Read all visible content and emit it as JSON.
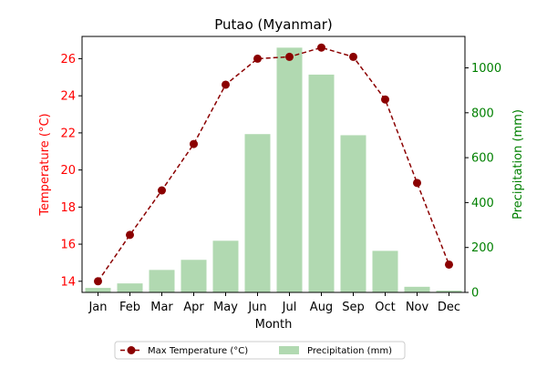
{
  "chart_data": {
    "type": "bar",
    "title": "Putao (Myanmar)",
    "xlabel": "Month",
    "categories": [
      "Jan",
      "Feb",
      "Mar",
      "Apr",
      "May",
      "Jun",
      "Jul",
      "Aug",
      "Sep",
      "Oct",
      "Nov",
      "Dec"
    ],
    "y_left": {
      "label": "Temperature (°C)",
      "range": [
        13.4,
        27.2
      ],
      "ticks": [
        14,
        16,
        18,
        20,
        22,
        24,
        26
      ],
      "color": "#ff0000"
    },
    "y_right": {
      "label": "Precipitation (mm)",
      "range": [
        0,
        1140
      ],
      "ticks": [
        0,
        200,
        400,
        600,
        800,
        1000
      ],
      "color": "#008000"
    },
    "series": [
      {
        "name": "Max Temperature (°C)",
        "type": "line",
        "axis": "left",
        "color": "#8b0000",
        "line_style": "dashed",
        "marker": "circle",
        "values": [
          14.0,
          16.5,
          18.9,
          21.4,
          24.6,
          26.0,
          26.1,
          26.6,
          26.1,
          23.8,
          19.3,
          14.9
        ]
      },
      {
        "name": "Precipitation (mm)",
        "type": "bar",
        "axis": "right",
        "color": "#b1d9b1",
        "values": [
          20,
          40,
          100,
          145,
          230,
          705,
          1090,
          970,
          700,
          185,
          25,
          8
        ]
      }
    ],
    "grid": false,
    "legend_position": "bottom-center"
  }
}
